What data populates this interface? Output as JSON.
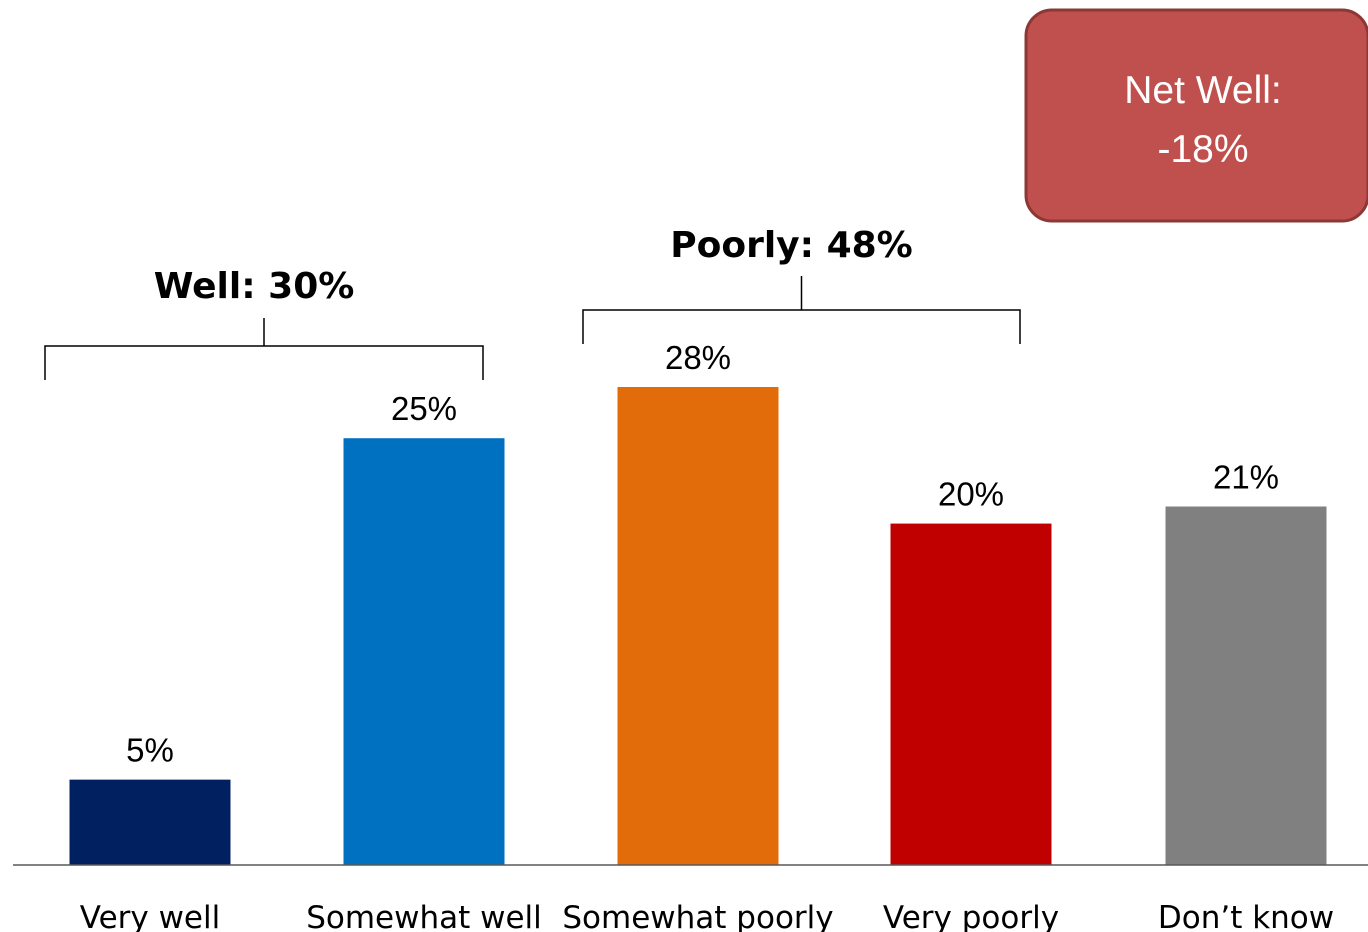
{
  "chart_data": {
    "type": "bar",
    "categories": [
      "Very well",
      "Somewhat well",
      "Somewhat poorly",
      "Very poorly",
      "Don’t know"
    ],
    "values": [
      5,
      25,
      28,
      20,
      21
    ],
    "value_labels": [
      "5%",
      "25%",
      "28%",
      "20%",
      "21%"
    ],
    "colors": [
      "#002060",
      "#0070C0",
      "#E36C0A",
      "#C00000",
      "#808080"
    ],
    "unit": "%",
    "ylim": [
      0,
      28
    ],
    "grid": false,
    "groups": [
      {
        "label": "Well: 30%",
        "first": 0,
        "last": 1
      },
      {
        "label": "Poorly: 48%",
        "first": 2,
        "last": 3
      }
    ],
    "callout": {
      "line1": "Net Well:",
      "line2": "-18%",
      "fill": "#C0504D",
      "border": "#8C3836"
    }
  }
}
